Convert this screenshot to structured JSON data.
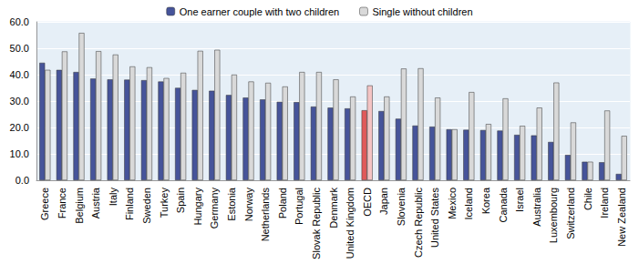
{
  "chart_data": {
    "type": "bar",
    "categories": [
      "Greece",
      "France",
      "Belgium",
      "Austria",
      "Italy",
      "Finland",
      "Sweden",
      "Turkey",
      "Spain",
      "Hungary",
      "Germany",
      "Estonia",
      "Norway",
      "Netherlands",
      "Poland",
      "Portugal",
      "Slovak Republic",
      "Denmark",
      "United Kingdom",
      "OECD",
      "Japan",
      "Slovenia",
      "Czech Republic",
      "United States",
      "Mexico",
      "Iceland",
      "Korea",
      "Canada",
      "Israel",
      "Australia",
      "Luxembourg",
      "Switzerland",
      "Chile",
      "Ireland",
      "New Zealand"
    ],
    "series": [
      {
        "name": "One earner couple with two children",
        "color": "#46549a",
        "colors": [
          "#46549a",
          "#46549a",
          "#46549a",
          "#46549a",
          "#46549a",
          "#46549a",
          "#46549a",
          "#46549a",
          "#46549a",
          "#46549a",
          "#46549a",
          "#46549a",
          "#46549a",
          "#46549a",
          "#46549a",
          "#46549a",
          "#46549a",
          "#46549a",
          "#46549a",
          "#e05a5a",
          "#46549a",
          "#46549a",
          "#46549a",
          "#46549a",
          "#46549a",
          "#46549a",
          "#46549a",
          "#46549a",
          "#46549a",
          "#46549a",
          "#46549a",
          "#46549a",
          "#46549a",
          "#46549a",
          "#46549a"
        ],
        "values": [
          44.5,
          41.8,
          41.0,
          38.5,
          38.2,
          38.1,
          37.9,
          37.4,
          35.0,
          34.2,
          33.9,
          32.3,
          31.3,
          30.6,
          29.7,
          29.6,
          27.9,
          27.5,
          27.2,
          26.5,
          26.2,
          23.3,
          20.7,
          20.3,
          19.3,
          19.1,
          19.0,
          18.8,
          17.2,
          17.0,
          14.5,
          9.6,
          7.0,
          6.8,
          2.4
        ]
      },
      {
        "name": "Single without children",
        "color": "#d9d9d9",
        "colors": [
          "#d9d9d9",
          "#d9d9d9",
          "#d9d9d9",
          "#d9d9d9",
          "#d9d9d9",
          "#d9d9d9",
          "#d9d9d9",
          "#d9d9d9",
          "#d9d9d9",
          "#d9d9d9",
          "#d9d9d9",
          "#d9d9d9",
          "#d9d9d9",
          "#d9d9d9",
          "#d9d9d9",
          "#d9d9d9",
          "#d9d9d9",
          "#d9d9d9",
          "#d9d9d9",
          "#f4c4c4",
          "#d9d9d9",
          "#d9d9d9",
          "#d9d9d9",
          "#d9d9d9",
          "#d9d9d9",
          "#d9d9d9",
          "#d9d9d9",
          "#d9d9d9",
          "#d9d9d9",
          "#d9d9d9",
          "#d9d9d9",
          "#d9d9d9",
          "#d9d9d9",
          "#d9d9d9",
          "#d9d9d9"
        ],
        "values": [
          41.8,
          48.8,
          55.8,
          48.9,
          47.6,
          43.1,
          42.8,
          38.7,
          40.7,
          49.0,
          49.4,
          40.0,
          37.4,
          36.9,
          35.5,
          41.0,
          41.0,
          38.2,
          31.7,
          35.9,
          31.7,
          42.3,
          42.4,
          31.3,
          19.3,
          33.4,
          21.3,
          31.0,
          20.6,
          27.5,
          37.0,
          21.9,
          7.0,
          26.4,
          16.8
        ]
      }
    ],
    "ylim": [
      0,
      60
    ],
    "yticks": [
      {
        "value": 0,
        "label": "0.0"
      },
      {
        "value": 10,
        "label": "10.0"
      },
      {
        "value": 20,
        "label": "20.0"
      },
      {
        "value": 30,
        "label": "30.0"
      },
      {
        "value": 40,
        "label": "40.0"
      },
      {
        "value": 50,
        "label": "50.0"
      },
      {
        "value": 60,
        "label": "60.0"
      }
    ],
    "grid": true,
    "legend": "top"
  }
}
